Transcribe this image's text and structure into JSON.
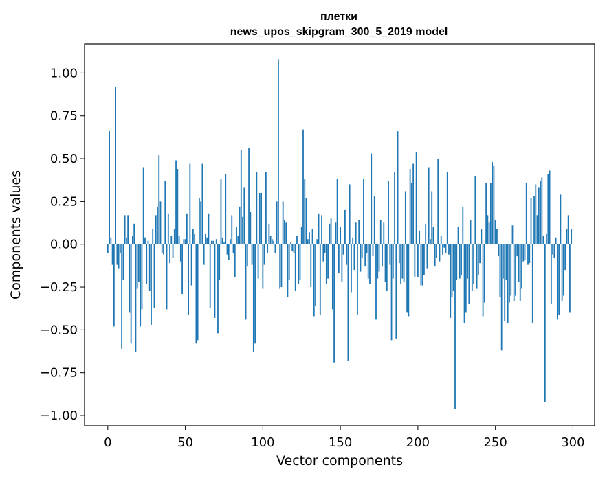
{
  "chart_data": {
    "type": "bar",
    "title": "плетки",
    "subtitle": "news_upos_skipgram_300_5_2019 model",
    "xlabel": "Vector components",
    "ylabel": "Components values",
    "xlim": [
      -15,
      314
    ],
    "ylim": [
      -1.06,
      1.17
    ],
    "x_ticks": [
      0,
      50,
      100,
      150,
      200,
      250,
      300
    ],
    "y_ticks": [
      1.0,
      0.75,
      0.5,
      0.25,
      0.0,
      -0.25,
      -0.5,
      -0.75,
      -1.0
    ],
    "y_tick_labels": [
      "1.00",
      "0.75",
      "0.50",
      "0.25",
      "0.00",
      "−0.25",
      "−0.50",
      "−0.75",
      "−1.00"
    ],
    "bar_color": "#1f77b4",
    "values": [
      -0.05,
      0.66,
      0.04,
      -0.12,
      -0.48,
      0.92,
      -0.12,
      -0.14,
      -0.05,
      -0.61,
      -0.21,
      0.17,
      0.04,
      0.17,
      -0.4,
      -0.58,
      0.05,
      0.12,
      -0.63,
      -0.26,
      -0.22,
      -0.48,
      -0.38,
      0.45,
      0.04,
      -0.23,
      0.02,
      -0.27,
      -0.47,
      0.09,
      -0.37,
      0.17,
      0.22,
      0.52,
      0.25,
      -0.05,
      -0.06,
      0.37,
      -0.38,
      0.18,
      -0.11,
      0.05,
      -0.08,
      0.09,
      0.49,
      0.44,
      0.05,
      -0.1,
      -0.29,
      0.03,
      0.03,
      0.18,
      -0.41,
      0.47,
      -0.24,
      0.09,
      0.06,
      -0.58,
      -0.56,
      0.27,
      0.25,
      0.47,
      -0.12,
      0.06,
      0.04,
      0.18,
      -0.37,
      0.02,
      0.02,
      -0.43,
      0.03,
      -0.52,
      -0.21,
      0.38,
      0.04,
      0.01,
      0.41,
      -0.06,
      -0.09,
      0.03,
      0.17,
      -0.05,
      -0.19,
      0.1,
      0.05,
      0.22,
      0.55,
      0.16,
      0.33,
      -0.44,
      -0.13,
      0.56,
      0.19,
      -0.12,
      -0.63,
      -0.58,
      0.42,
      -0.2,
      0.3,
      0.3,
      -0.26,
      -0.12,
      0.42,
      -0.05,
      0.12,
      0.05,
      0.03,
      0.02,
      -0.05,
      0.25,
      1.08,
      -0.26,
      -0.25,
      0.25,
      0.14,
      0.13,
      -0.31,
      -0.21,
      0.01,
      -0.04,
      -0.05,
      -0.27,
      0.05,
      -0.23,
      -0.21,
      0.1,
      0.67,
      0.38,
      0.27,
      0.03,
      0.07,
      -0.25,
      0.09,
      -0.42,
      -0.36,
      0.03,
      0.18,
      -0.41,
      0.17,
      -0.1,
      -0.05,
      -0.23,
      -0.2,
      0.12,
      0.15,
      -0.38,
      -0.69,
      0.13,
      0.38,
      -0.17,
      0.1,
      -0.22,
      -0.06,
      0.2,
      -0.12,
      -0.68,
      0.35,
      -0.28,
      0.04,
      -0.15,
      0.13,
      -0.41,
      0.14,
      -0.16,
      -0.08,
      0.38,
      -0.13,
      -0.05,
      -0.2,
      -0.23,
      0.53,
      -0.07,
      0.28,
      -0.44,
      -0.2,
      -0.16,
      0.14,
      -0.13,
      0.13,
      -0.22,
      -0.27,
      0.37,
      -0.12,
      -0.56,
      -0.2,
      0.42,
      -0.55,
      0.66,
      -0.11,
      -0.23,
      -0.2,
      -0.22,
      0.31,
      -0.4,
      -0.42,
      0.44,
      0.36,
      0.47,
      -0.19,
      0.54,
      -0.19,
      0.08,
      -0.24,
      -0.24,
      -0.18,
      0.12,
      -0.14,
      0.45,
      0.03,
      0.31,
      0.1,
      -0.13,
      -0.08,
      0.5,
      -0.1,
      0.05,
      -0.06,
      -0.02,
      -0.05,
      0.42,
      -0.06,
      -0.43,
      -0.31,
      -0.27,
      -0.96,
      -0.21,
      0.1,
      -0.2,
      -0.18,
      0.22,
      -0.46,
      -0.4,
      -0.2,
      -0.35,
      0.14,
      -0.27,
      -0.23,
      0.4,
      -0.26,
      -0.18,
      -0.11,
      0.09,
      -0.42,
      -0.34,
      0.36,
      0.17,
      0.13,
      0.36,
      0.48,
      0.46,
      0.14,
      0.09,
      -0.07,
      -0.31,
      -0.62,
      -0.2,
      -0.45,
      -0.21,
      -0.46,
      -0.34,
      -0.3,
      0.11,
      -0.33,
      -0.3,
      -0.07,
      -0.22,
      -0.33,
      -0.26,
      -0.1,
      -0.09,
      0.36,
      -0.12,
      -0.11,
      0.27,
      -0.46,
      0.28,
      0.35,
      0.17,
      0.33,
      0.37,
      0.39,
      0.05,
      -0.92,
      0.06,
      0.41,
      0.43,
      -0.35,
      -0.06,
      -0.08,
      0.04,
      -0.44,
      -0.41,
      0.29,
      -0.33,
      -0.3,
      -0.15,
      0.09,
      0.17,
      -0.4,
      0.09
    ]
  }
}
